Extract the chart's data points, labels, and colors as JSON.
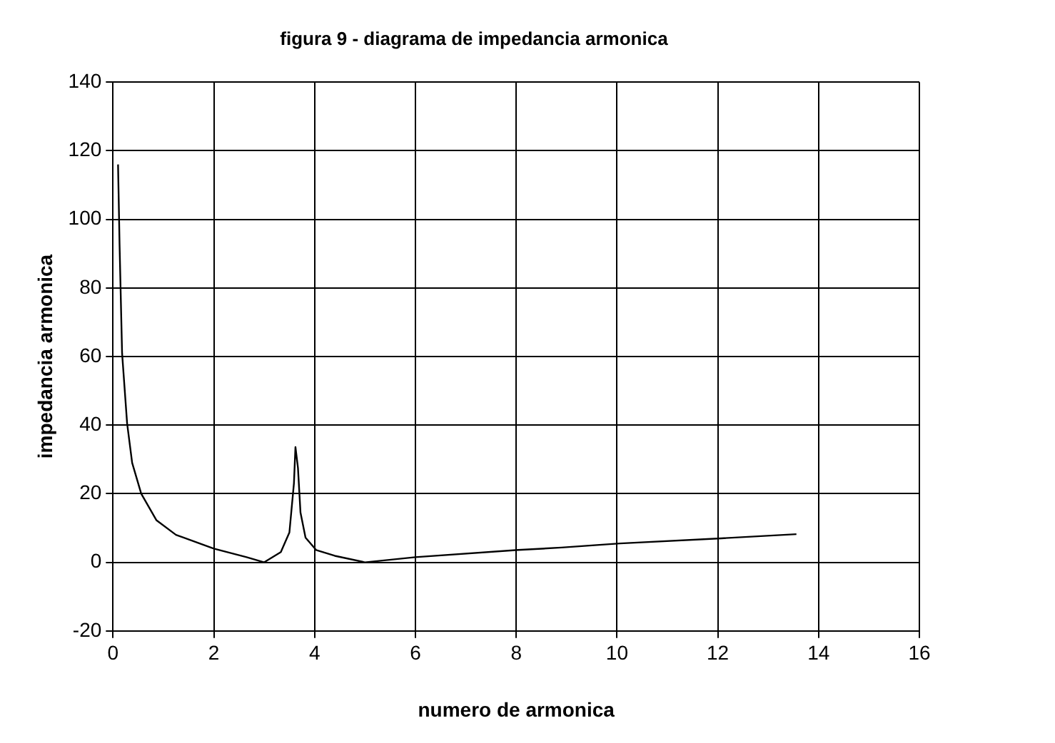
{
  "chart_data": {
    "type": "line",
    "title": "figura 9 - diagrama de impedancia armonica",
    "xlabel": "numero de armonica",
    "ylabel": "impedancia armonica",
    "xlim": [
      0,
      16
    ],
    "xticks": [
      0,
      2,
      4,
      6,
      8,
      10,
      12,
      14,
      16
    ],
    "ylim": [
      -20,
      140
    ],
    "yticks": [
      -20,
      0,
      20,
      40,
      60,
      80,
      100,
      120,
      140
    ],
    "grid": true,
    "legend": false,
    "marker": "none",
    "line_style": "solid",
    "series": [
      {
        "color": "#000000",
        "x": [
          0.1,
          0.13,
          0.18,
          0.28,
          0.38,
          0.56,
          0.86,
          1.25,
          2,
          2.65,
          3.0,
          3.33,
          3.5,
          3.59,
          3.62,
          3.67,
          3.72,
          3.82,
          4.03,
          4.4,
          5.0,
          6.0,
          8.04,
          8.9,
          10.06,
          12.07,
          13.56
        ],
        "values": [
          116,
          92.7,
          61,
          40.5,
          29,
          20,
          12.3,
          8,
          4,
          1.5,
          0,
          3,
          8.7,
          23,
          33.6,
          27.5,
          14.5,
          7.2,
          3.6,
          1.9,
          0,
          1.5,
          3.6,
          4.3,
          5.5,
          7,
          8.2
        ]
      }
    ]
  }
}
